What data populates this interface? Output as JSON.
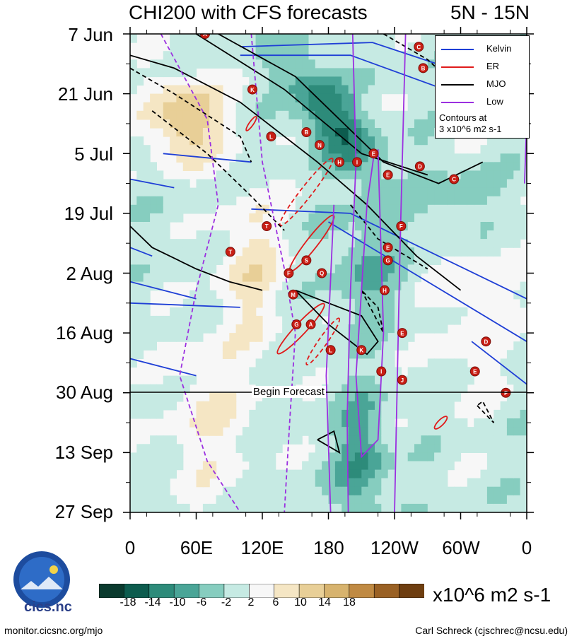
{
  "title": "CHI200 with CFS forecasts",
  "region": "5N - 15N",
  "legend": {
    "kelvin": "Kelvin",
    "er": "ER",
    "mjo": "MJO",
    "low": "Low",
    "note1": "Contours at",
    "note2": "3 x10^6 m2 s-1"
  },
  "forecast_label": "Begin Forecast",
  "colorbar": {
    "labels": [
      "-18",
      "-14",
      "-10",
      "-6",
      "-2",
      "2",
      "6",
      "10",
      "14",
      "18"
    ],
    "colors": [
      "#0a3a2e",
      "#0d5c4e",
      "#2d8b7a",
      "#4aa597",
      "#86cdbf",
      "#c6eae3",
      "#f7f7f7",
      "#f5e6c4",
      "#e8cf97",
      "#d7b36e",
      "#c08a43",
      "#9a6124",
      "#6e3e10"
    ],
    "units": "x10^6 m2 s-1"
  },
  "footer": {
    "left": "monitor.cicsnc.org/mjo",
    "right": "Carl Schreck (cjschrec@ncsu.edu)"
  },
  "logo_text": "cics.nc",
  "chart_data": {
    "type": "heatmap",
    "title": "CHI200 with CFS forecasts",
    "subtitle": "5N - 15N",
    "x_axis": {
      "labels": [
        "0",
        "60E",
        "120E",
        "180",
        "120W",
        "60W",
        "0"
      ],
      "range_deg": [
        0,
        360
      ]
    },
    "y_axis": {
      "labels": [
        "7 Jun",
        "21 Jun",
        "5 Jul",
        "19 Jul",
        "2 Aug",
        "16 Aug",
        "30 Aug",
        "13 Sep",
        "27 Sep"
      ],
      "range_days": [
        0,
        112
      ]
    },
    "forecast_start": "30 Aug",
    "contour_interval": "3 x10^6 m2 s-1",
    "series": [
      {
        "name": "Kelvin",
        "color": "#1f3fd6"
      },
      {
        "name": "ER",
        "color": "#e01b1b"
      },
      {
        "name": "MJO",
        "color": "#000000"
      },
      {
        "name": "Low",
        "color": "#9b30e0"
      }
    ],
    "storms": [
      {
        "letter": "A",
        "lon": 68,
        "day": 0
      },
      {
        "letter": "C",
        "lon": 262,
        "day": 3
      },
      {
        "letter": "B",
        "lon": 266,
        "day": 8
      },
      {
        "letter": "K",
        "lon": 111,
        "day": 13
      },
      {
        "letter": "B",
        "lon": 160,
        "day": 23
      },
      {
        "letter": "L",
        "lon": 128,
        "day": 24
      },
      {
        "letter": "N",
        "lon": 172,
        "day": 26
      },
      {
        "letter": "E",
        "lon": 221,
        "day": 28
      },
      {
        "letter": "H",
        "lon": 190,
        "day": 30
      },
      {
        "letter": "I",
        "lon": 206,
        "day": 30
      },
      {
        "letter": "D",
        "lon": 263,
        "day": 31
      },
      {
        "letter": "E",
        "lon": 234,
        "day": 33
      },
      {
        "letter": "C",
        "lon": 294,
        "day": 34
      },
      {
        "letter": "T",
        "lon": 124,
        "day": 45
      },
      {
        "letter": "F",
        "lon": 246,
        "day": 45
      },
      {
        "letter": "T",
        "lon": 91,
        "day": 51
      },
      {
        "letter": "E",
        "lon": 234,
        "day": 50
      },
      {
        "letter": "G",
        "lon": 234,
        "day": 53
      },
      {
        "letter": "S",
        "lon": 160,
        "day": 53
      },
      {
        "letter": "F",
        "lon": 144,
        "day": 56
      },
      {
        "letter": "Q",
        "lon": 174,
        "day": 56
      },
      {
        "letter": "H",
        "lon": 231,
        "day": 60
      },
      {
        "letter": "M",
        "lon": 148,
        "day": 61
      },
      {
        "letter": "A",
        "lon": 164,
        "day": 68
      },
      {
        "letter": "G",
        "lon": 151,
        "day": 68
      },
      {
        "letter": "E",
        "lon": 247,
        "day": 70
      },
      {
        "letter": "D",
        "lon": 323,
        "day": 72
      },
      {
        "letter": "L",
        "lon": 182,
        "day": 74
      },
      {
        "letter": "K",
        "lon": 210,
        "day": 74
      },
      {
        "letter": "E",
        "lon": 313,
        "day": 79
      },
      {
        "letter": "I",
        "lon": 228,
        "day": 79
      },
      {
        "letter": "J",
        "lon": 247,
        "day": 81
      },
      {
        "letter": "F",
        "lon": 341,
        "day": 84
      }
    ]
  }
}
